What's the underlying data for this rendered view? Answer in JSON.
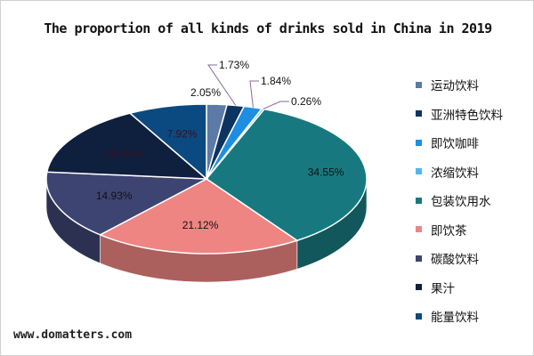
{
  "chart_data": {
    "type": "pie",
    "title": "The proportion of all kinds of drinks sold in China in 2019",
    "style": "3d",
    "legend_position": "right",
    "categories": [
      "运动饮料",
      "亚洲特色饮料",
      "即饮咖啡",
      "浓缩饮料",
      "包装饮用水",
      "即饮茶",
      "碳酸饮料",
      "果汁",
      "能量饮料"
    ],
    "values": [
      2.05,
      1.73,
      1.84,
      0.26,
      34.55,
      21.12,
      14.93,
      15.6,
      7.92
    ],
    "labels": [
      "2.05%",
      "1.73%",
      "1.84%",
      "0.26%",
      "34.55%",
      "21.12%",
      "14.93%",
      "15.60%",
      "7.92%"
    ],
    "colors": [
      "#5b7aa6",
      "#0d3461",
      "#1e8fe0",
      "#52b6ee",
      "#17797f",
      "#ee8583",
      "#3e4471",
      "#0f1f3e",
      "#0b4a80"
    ]
  },
  "watermark": "www.domatters.com"
}
